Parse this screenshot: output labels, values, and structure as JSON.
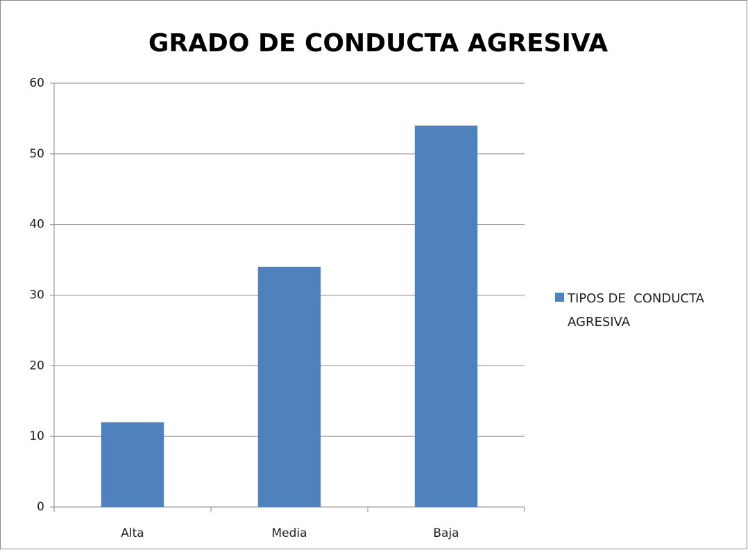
{
  "chart_data": {
    "type": "bar",
    "title": "GRADO DE CONDUCTA AGRESIVA",
    "categories": [
      "Alta",
      "Media",
      "Baja"
    ],
    "series": [
      {
        "name": "TIPOS DE  CONDUCTA AGRESIVA",
        "color": "#4f81bd",
        "values": [
          12,
          34,
          54
        ]
      }
    ],
    "ylim": [
      0,
      60
    ],
    "yticks": [
      0,
      10,
      20,
      30,
      40,
      50,
      60
    ],
    "grid": true,
    "legend": "right"
  }
}
